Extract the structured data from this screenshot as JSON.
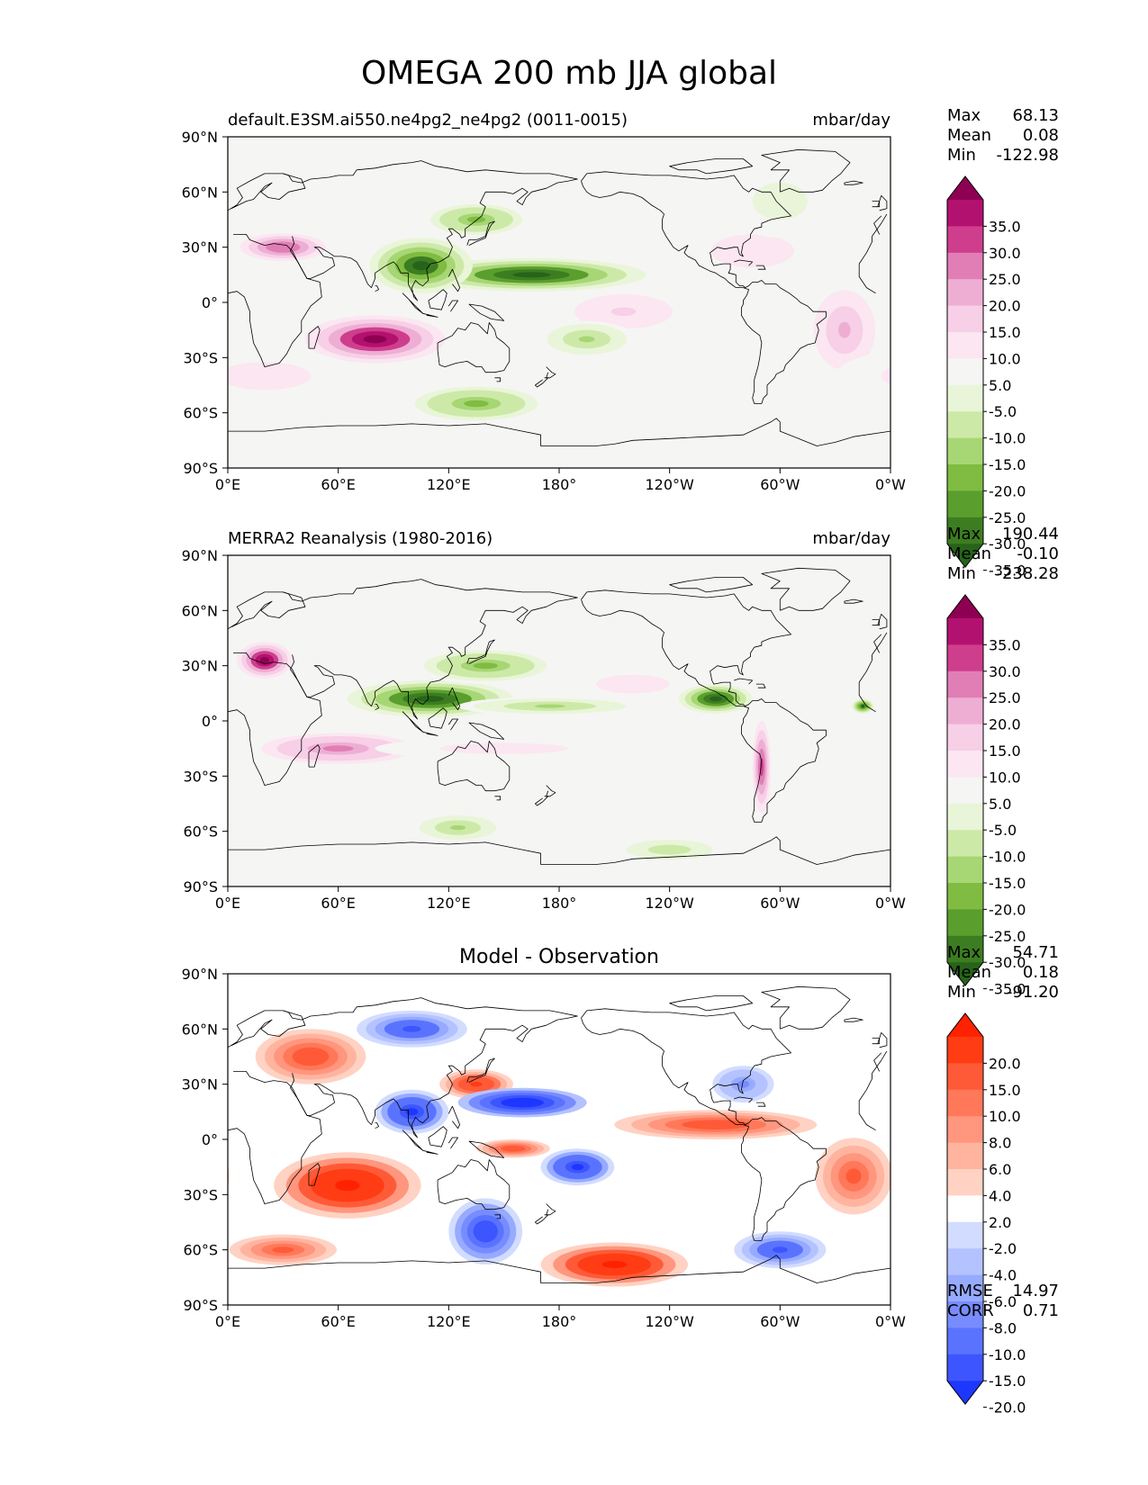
{
  "chart_data": {
    "type": "heatmap",
    "title": "OMEGA 200 mb JJA global",
    "x_ticks": [
      "0°E",
      "60°E",
      "120°E",
      "180°",
      "120°W",
      "60°W",
      "0°W"
    ],
    "y_ticks": [
      "90°N",
      "60°N",
      "30°N",
      "0°",
      "30°S",
      "60°S",
      "90°S"
    ],
    "xlim": [
      0,
      360
    ],
    "ylim": [
      -90,
      90
    ],
    "panels": [
      {
        "id": "model",
        "left_title": "default.E3SM.ai550.ne4pg2_ne4pg2 (0011-0015)",
        "center_title": "",
        "units": "mbar/day",
        "stats": [
          {
            "label": "Max",
            "value": "68.13"
          },
          {
            "label": "Mean",
            "value": "0.08"
          },
          {
            "label": "Min",
            "value": "-122.98"
          }
        ],
        "extra_stats": [],
        "colorbar": {
          "labels": [
            "35.0",
            "30.0",
            "25.0",
            "20.0",
            "15.0",
            "10.0",
            "5.0",
            "-5.0",
            "-10.0",
            "-15.0",
            "-20.0",
            "-25.0",
            "-30.0",
            "-35.0"
          ],
          "colors": [
            "#8e0152",
            "#b3116f",
            "#cf3e8d",
            "#e07eb5",
            "#eeaed4",
            "#f7cfe6",
            "#fbe6f1",
            "#f5f5f3",
            "#e9f5d8",
            "#cde9a8",
            "#a7d674",
            "#7fbc41",
            "#5a9e2d",
            "#3d7d21",
            "#276419"
          ]
        },
        "features": [
          {
            "lon": 80,
            "lat": -20,
            "rx": 38,
            "ry": 13,
            "value": 38
          },
          {
            "lon": 30,
            "lat": 30,
            "rx": 28,
            "ry": 9,
            "value": 25
          },
          {
            "lon": 335,
            "lat": -15,
            "rx": 20,
            "ry": 26,
            "value": 18
          },
          {
            "lon": 215,
            "lat": -5,
            "rx": 40,
            "ry": 14,
            "value": 12
          },
          {
            "lon": 285,
            "lat": 28,
            "rx": 45,
            "ry": 18,
            "value": 8
          },
          {
            "lon": 20,
            "lat": -40,
            "rx": 50,
            "ry": 15,
            "value": 9
          },
          {
            "lon": 165,
            "lat": 15,
            "rx": 62,
            "ry": 9,
            "value": -38
          },
          {
            "lon": 105,
            "lat": 20,
            "rx": 28,
            "ry": 15,
            "value": -36
          },
          {
            "lon": 135,
            "lat": 45,
            "rx": 30,
            "ry": 10,
            "value": -20
          },
          {
            "lon": 135,
            "lat": -55,
            "rx": 40,
            "ry": 11,
            "value": -20
          },
          {
            "lon": 195,
            "lat": -20,
            "rx": 26,
            "ry": 10,
            "value": -17
          },
          {
            "lon": 300,
            "lat": 55,
            "rx": 30,
            "ry": 20,
            "value": -8
          }
        ]
      },
      {
        "id": "obs",
        "left_title": "MERRA2 Reanalysis (1980-2016)",
        "center_title": "",
        "units": "mbar/day",
        "stats": [
          {
            "label": "Max",
            "value": "190.44"
          },
          {
            "label": "Mean",
            "value": "-0.10"
          },
          {
            "label": "Min",
            "value": "-238.28"
          }
        ],
        "extra_stats": [],
        "colorbar": {
          "labels": [
            "35.0",
            "30.0",
            "25.0",
            "20.0",
            "15.0",
            "10.0",
            "5.0",
            "-5.0",
            "-10.0",
            "-15.0",
            "-20.0",
            "-25.0",
            "-30.0",
            "-35.0"
          ],
          "colors": [
            "#8e0152",
            "#b3116f",
            "#cf3e8d",
            "#e07eb5",
            "#eeaed4",
            "#f7cfe6",
            "#fbe6f1",
            "#f5f5f3",
            "#e9f5d8",
            "#cde9a8",
            "#a7d674",
            "#7fbc41",
            "#5a9e2d",
            "#3d7d21",
            "#276419"
          ]
        },
        "features": [
          {
            "lon": 20,
            "lat": 33,
            "rx": 15,
            "ry": 10,
            "value": 40
          },
          {
            "lon": 60,
            "lat": -15,
            "rx": 50,
            "ry": 10,
            "value": 22
          },
          {
            "lon": 290,
            "lat": -25,
            "rx": 6,
            "ry": 30,
            "value": 30
          },
          {
            "lon": 220,
            "lat": 20,
            "rx": 40,
            "ry": 10,
            "value": 10
          },
          {
            "lon": 150,
            "lat": -15,
            "rx": 70,
            "ry": 6,
            "value": 8
          },
          {
            "lon": 110,
            "lat": 12,
            "rx": 45,
            "ry": 10,
            "value": -38
          },
          {
            "lon": 140,
            "lat": 30,
            "rx": 40,
            "ry": 10,
            "value": -22
          },
          {
            "lon": 175,
            "lat": 8,
            "rx": 50,
            "ry": 5,
            "value": -15
          },
          {
            "lon": 265,
            "lat": 12,
            "rx": 20,
            "ry": 8,
            "value": -38
          },
          {
            "lon": 125,
            "lat": -58,
            "rx": 25,
            "ry": 8,
            "value": -15
          },
          {
            "lon": 240,
            "lat": -70,
            "rx": 35,
            "ry": 8,
            "value": -12
          },
          {
            "lon": 345,
            "lat": 8,
            "rx": 6,
            "ry": 4,
            "value": -35
          }
        ]
      },
      {
        "id": "diff",
        "left_title": "",
        "center_title": "Model - Observation",
        "units": "",
        "stats": [
          {
            "label": "Max",
            "value": "54.71"
          },
          {
            "label": "Mean",
            "value": "0.18"
          },
          {
            "label": "Min",
            "value": "-91.20"
          }
        ],
        "extra_stats": [
          {
            "label": "RMSE",
            "value": "14.97"
          },
          {
            "label": "CORR",
            "value": "0.71"
          }
        ],
        "colorbar": {
          "labels": [
            "20.0",
            "15.0",
            "10.0",
            "8.0",
            "6.0",
            "4.0",
            "2.0",
            "-2.0",
            "-4.0",
            "-6.0",
            "-8.0",
            "-10.0",
            "-15.0",
            "-20.0"
          ],
          "colors": [
            "#ff2200",
            "#ff3c14",
            "#ff5a37",
            "#ff785a",
            "#ff967d",
            "#ffb4a0",
            "#ffd2c3",
            "#ffffff",
            "#d2dcff",
            "#b4c3ff",
            "#96aaff",
            "#788cff",
            "#5a73ff",
            "#3c55ff",
            "#1e37ff"
          ]
        },
        "features": [
          {
            "lon": 65,
            "lat": -25,
            "rx": 40,
            "ry": 18,
            "value": 24
          },
          {
            "lon": 45,
            "lat": 45,
            "rx": 30,
            "ry": 15,
            "value": 15
          },
          {
            "lon": 210,
            "lat": -68,
            "rx": 40,
            "ry": 12,
            "value": 24
          },
          {
            "lon": 265,
            "lat": 8,
            "rx": 55,
            "ry": 8,
            "value": 14
          },
          {
            "lon": 340,
            "lat": -20,
            "rx": 25,
            "ry": 25,
            "value": 12
          },
          {
            "lon": 135,
            "lat": 30,
            "rx": 20,
            "ry": 8,
            "value": 18
          },
          {
            "lon": 155,
            "lat": -5,
            "rx": 20,
            "ry": 5,
            "value": 15
          },
          {
            "lon": 30,
            "lat": -60,
            "rx": 35,
            "ry": 10,
            "value": 12
          },
          {
            "lon": 160,
            "lat": 20,
            "rx": 35,
            "ry": 8,
            "value": -24
          },
          {
            "lon": 100,
            "lat": 15,
            "rx": 20,
            "ry": 12,
            "value": -22
          },
          {
            "lon": 140,
            "lat": -50,
            "rx": 20,
            "ry": 18,
            "value": -18
          },
          {
            "lon": 190,
            "lat": -15,
            "rx": 20,
            "ry": 10,
            "value": -20
          },
          {
            "lon": 300,
            "lat": -60,
            "rx": 25,
            "ry": 10,
            "value": -15
          },
          {
            "lon": 100,
            "lat": 60,
            "rx": 30,
            "ry": 10,
            "value": -15
          },
          {
            "lon": 280,
            "lat": 30,
            "rx": 20,
            "ry": 12,
            "value": -8
          }
        ]
      }
    ]
  }
}
